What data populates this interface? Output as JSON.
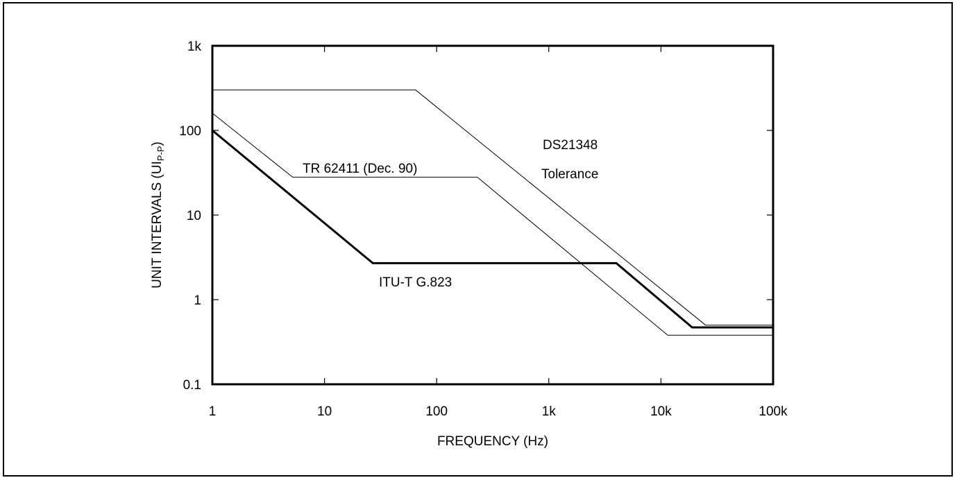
{
  "chart_data": {
    "type": "line",
    "xscale": "log",
    "yscale": "log",
    "xlim": [
      1,
      100000
    ],
    "ylim": [
      0.1,
      1000
    ],
    "xlabel": "FREQUENCY (Hz)",
    "ylabel": {
      "main": "UNIT INTERVALS (UI",
      "sub": "P-P",
      "close": ")"
    },
    "x_ticks": [
      {
        "value": 1,
        "label": "1"
      },
      {
        "value": 10,
        "label": "10"
      },
      {
        "value": 100,
        "label": "100"
      },
      {
        "value": 1000,
        "label": "1k"
      },
      {
        "value": 10000,
        "label": "10k"
      },
      {
        "value": 100000,
        "label": "100k"
      }
    ],
    "y_ticks": [
      {
        "value": 0.1,
        "label": "0.1"
      },
      {
        "value": 1,
        "label": "1"
      },
      {
        "value": 10,
        "label": "10"
      },
      {
        "value": 100,
        "label": "100"
      },
      {
        "value": 1000,
        "label": "1k"
      }
    ],
    "grid": false,
    "series": [
      {
        "key": "ds21348",
        "annotation": [
          "DS21348",
          "Tolerance"
        ],
        "line_width": "thin",
        "points": [
          [
            1,
            300
          ],
          [
            65,
            300
          ],
          [
            25000,
            0.5
          ],
          [
            100000,
            0.5
          ]
        ]
      },
      {
        "key": "tr62411",
        "annotation": [
          "TR 62411 (Dec. 90)"
        ],
        "line_width": "thin",
        "points": [
          [
            1,
            160
          ],
          [
            5.2,
            28
          ],
          [
            230,
            28
          ],
          [
            11500,
            0.38
          ],
          [
            100000,
            0.38
          ]
        ]
      },
      {
        "key": "g823",
        "annotation": [
          "ITU-T G.823"
        ],
        "line_width": "thick",
        "points": [
          [
            1,
            100
          ],
          [
            27,
            2.7
          ],
          [
            4000,
            2.7
          ],
          [
            19000,
            0.47
          ],
          [
            100000,
            0.47
          ]
        ]
      }
    ]
  }
}
